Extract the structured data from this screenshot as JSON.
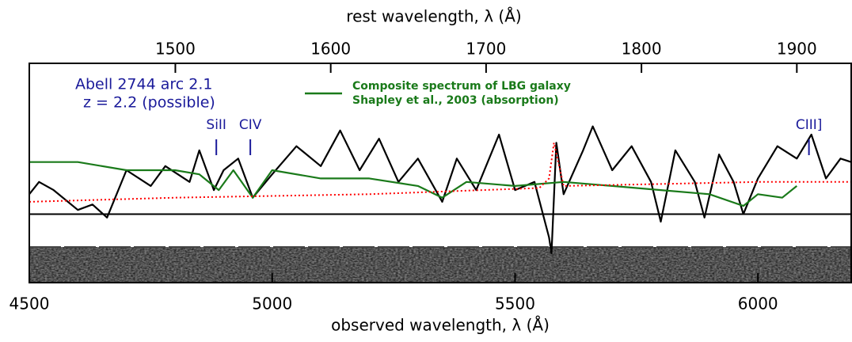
{
  "chart_data": {
    "type": "line",
    "xlabel": "observed wavelength, λ (Å)",
    "x2label": "rest wavelength, λ (Å)",
    "xlim": [
      4500,
      6192
    ],
    "xticks": [
      4500,
      5000,
      5500,
      6000
    ],
    "x2lim": [
      1406,
      1935
    ],
    "x2ticks": [
      1500,
      1600,
      1700,
      1800,
      1900
    ],
    "ylim": [
      -1,
      2.2
    ],
    "annotations": [
      "Abell 2744 arc 2.1",
      "z = 2.2 (possible)"
    ],
    "legend_note": "Shapley et al., 2003 (absorption)",
    "lines": [
      {
        "label": "SiII",
        "x": 4885
      },
      {
        "label": "CIV",
        "x": 4955
      },
      {
        "label": "CIII]",
        "x": 6105
      }
    ],
    "series": [
      {
        "color": "#000000",
        "x": [
          4500,
          4520,
          4550,
          4600,
          4630,
          4660,
          4700,
          4750,
          4780,
          4830,
          4850,
          4880,
          4900,
          4930,
          4960,
          5000,
          5050,
          5100,
          5140,
          5180,
          5220,
          5260,
          5300,
          5350,
          5380,
          5420,
          5467,
          5500,
          5540,
          5570,
          5575,
          5585,
          5600,
          5640,
          5660,
          5700,
          5740,
          5780,
          5800,
          5830,
          5870,
          5890,
          5920,
          5950,
          5970,
          6000,
          6040,
          6080,
          6110,
          6140,
          6170,
          6192
        ],
        "values": [
          0.29,
          0.47,
          0.35,
          0.06,
          0.14,
          -0.05,
          0.64,
          0.41,
          0.7,
          0.47,
          0.93,
          0.35,
          0.64,
          0.81,
          0.24,
          0.58,
          0.99,
          0.7,
          1.22,
          0.64,
          1.1,
          0.47,
          0.81,
          0.18,
          0.81,
          0.35,
          1.16,
          0.35,
          0.47,
          -0.34,
          -0.57,
          1.04,
          0.29,
          0.93,
          1.28,
          0.64,
          0.99,
          0.47,
          -0.11,
          0.93,
          0.47,
          -0.05,
          0.87,
          0.47,
          0.0,
          0.52,
          0.99,
          0.81,
          1.16,
          0.52,
          0.81,
          0.76
        ]
      },
      {
        "name": "Composite spectrum of LBG galaxy",
        "color": "#1a7a1a",
        "x": [
          4500,
          4600,
          4700,
          4800,
          4850,
          4890,
          4920,
          4960,
          5000,
          5100,
          5200,
          5300,
          5350,
          5400,
          5500,
          5600,
          5700,
          5800,
          5900,
          5970,
          6000,
          6050,
          6080
        ],
        "values": [
          0.76,
          0.76,
          0.64,
          0.64,
          0.58,
          0.35,
          0.64,
          0.24,
          0.64,
          0.52,
          0.52,
          0.41,
          0.24,
          0.47,
          0.41,
          0.47,
          0.41,
          0.35,
          0.29,
          0.12,
          0.29,
          0.24,
          0.41
        ]
      },
      {
        "color": "#ff0000",
        "dashed": true,
        "x": [
          4500,
          4800,
          5200,
          5550,
          5570,
          5580,
          5600,
          5800,
          6000,
          6192
        ],
        "values": [
          0.18,
          0.24,
          0.29,
          0.38,
          0.52,
          1.04,
          0.41,
          0.44,
          0.47,
          0.47
        ]
      }
    ]
  }
}
